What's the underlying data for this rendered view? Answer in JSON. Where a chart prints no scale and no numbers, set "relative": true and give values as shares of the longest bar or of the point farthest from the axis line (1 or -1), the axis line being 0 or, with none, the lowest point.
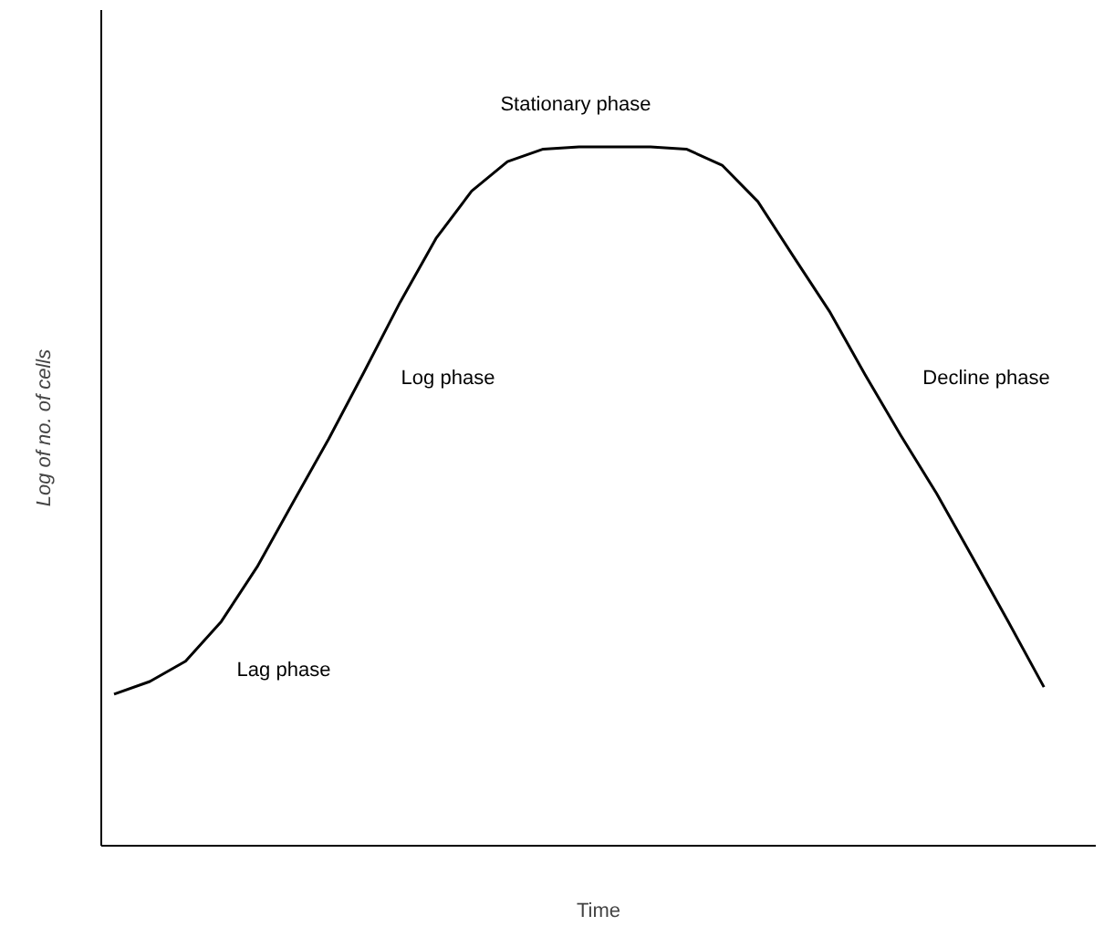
{
  "chart_data": {
    "type": "line",
    "relative": true,
    "xlabel": "Time",
    "ylabel": "Log of no. of cells",
    "color": "#000000",
    "marker": "none",
    "line_style": "solid",
    "categories": [
      null,
      null,
      null,
      null,
      null,
      null,
      null,
      null,
      null,
      null,
      null,
      null,
      null,
      null,
      null,
      null,
      null,
      null,
      null,
      null,
      null,
      null,
      null,
      null,
      null,
      null,
      null
    ],
    "values": [
      0.217,
      0.235,
      0.264,
      0.321,
      0.399,
      0.491,
      0.582,
      0.679,
      0.778,
      0.869,
      0.937,
      0.979,
      0.997,
      1,
      1,
      1,
      0.997,
      0.974,
      0.922,
      0.843,
      0.765,
      0.674,
      0.587,
      0.504,
      0.413,
      0.321,
      0.227
    ],
    "annotations": [
      "Stationary phase",
      "Log phase",
      "Decline phase",
      "Lag phase"
    ]
  }
}
